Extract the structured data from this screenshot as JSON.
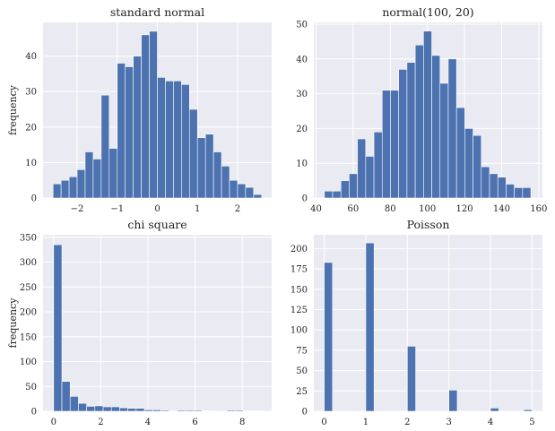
{
  "chart_data": [
    {
      "id": "p1",
      "type": "bar",
      "title": "standard normal",
      "ylabel": "frequency",
      "xlim": [
        -2.85,
        2.85
      ],
      "ylim": [
        0,
        49.5
      ],
      "xticks": [
        -2,
        -1,
        0,
        1,
        2
      ],
      "xtick_labels": [
        "−2",
        "−1",
        "0",
        "1",
        "2"
      ],
      "yticks": [
        0,
        10,
        20,
        30,
        40
      ],
      "ytick_labels": [
        "0",
        "10",
        "20",
        "30",
        "40"
      ],
      "bin_start": -2.6,
      "bin_width": 0.2,
      "values": [
        4,
        5,
        6,
        8,
        13,
        11,
        29,
        14,
        38,
        37,
        40,
        46,
        47,
        34,
        33,
        33,
        32,
        25,
        17,
        18,
        13,
        9,
        5,
        4,
        3,
        1
      ]
    },
    {
      "id": "p2",
      "type": "bar",
      "title": "normal(100, 20)",
      "ylabel": "",
      "xlim": [
        38.8,
        162
      ],
      "ylim": [
        0,
        50.5
      ],
      "xticks": [
        40,
        60,
        80,
        100,
        120,
        140,
        160
      ],
      "xtick_labels": [
        "40",
        "60",
        "80",
        "100",
        "120",
        "140",
        "160"
      ],
      "yticks": [
        0,
        10,
        20,
        30,
        40,
        50
      ],
      "ytick_labels": [
        "0",
        "10",
        "20",
        "30",
        "40",
        "50"
      ],
      "bin_start": 44.5,
      "bin_width": 4.45,
      "values": [
        2,
        2,
        5,
        7,
        17,
        12,
        19,
        31,
        31,
        37,
        39,
        44,
        48,
        41,
        33,
        40,
        26,
        20,
        18,
        9,
        7,
        6,
        4,
        3,
        3
      ]
    },
    {
      "id": "p3",
      "type": "bar",
      "title": "chi square",
      "ylabel": "frequency",
      "xlim": [
        -0.45,
        9.25
      ],
      "ylim": [
        0,
        355
      ],
      "xticks": [
        0,
        2,
        4,
        6,
        8
      ],
      "xtick_labels": [
        "0",
        "2",
        "4",
        "6",
        "8"
      ],
      "yticks": [
        0,
        50,
        100,
        150,
        200,
        250,
        300,
        350
      ],
      "ytick_labels": [
        "0",
        "50",
        "100",
        "150",
        "200",
        "250",
        "300",
        "350"
      ],
      "bin_start": 0,
      "bin_width": 0.35,
      "values": [
        335,
        60,
        30,
        16,
        10,
        11,
        9,
        9,
        7,
        6,
        6,
        3,
        3,
        2,
        1,
        2,
        2,
        2,
        1,
        0,
        0,
        2,
        2,
        1,
        1
      ]
    },
    {
      "id": "p4",
      "type": "bar",
      "title": "Poisson",
      "ylabel": "",
      "xlim": [
        -0.25,
        5.25
      ],
      "ylim": [
        0,
        217
      ],
      "xticks": [
        0,
        1,
        2,
        3,
        4,
        5
      ],
      "xtick_labels": [
        "0",
        "1",
        "2",
        "3",
        "4",
        "5"
      ],
      "yticks": [
        0,
        25,
        50,
        75,
        100,
        125,
        150,
        175,
        200
      ],
      "ytick_labels": [
        "0",
        "25",
        "50",
        "75",
        "100",
        "125",
        "150",
        "175",
        "200"
      ],
      "bin_start": 0,
      "bin_width": 0.2,
      "values": [
        183,
        0,
        0,
        0,
        0,
        207,
        0,
        0,
        0,
        0,
        80,
        0,
        0,
        0,
        0,
        26,
        0,
        0,
        0,
        0,
        4,
        0,
        0,
        0,
        2
      ]
    }
  ],
  "colors": {
    "bar": "#4C72B0",
    "panel_background": "#EAEAF2",
    "grid": "#FFFFFF",
    "text": "#222222"
  }
}
